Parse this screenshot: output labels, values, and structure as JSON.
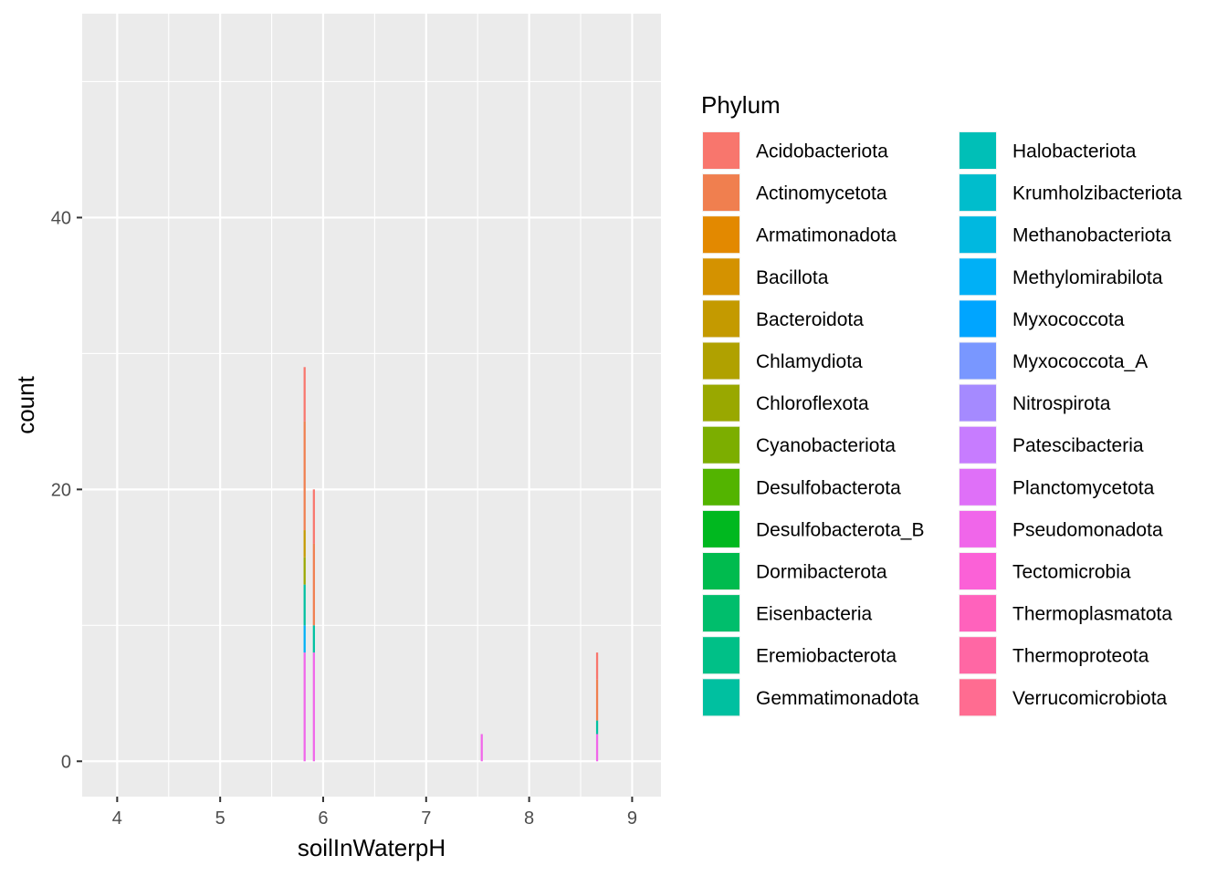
{
  "chart_data": {
    "type": "bar",
    "subtype": "stacked-histogram",
    "xlabel": "soilInWaterpH",
    "ylabel": "count",
    "xlim": [
      3.66,
      9.28
    ],
    "ylim": [
      -2.6,
      55.0
    ],
    "x_ticks": [
      4,
      5,
      6,
      7,
      8,
      9
    ],
    "y_ticks": [
      0,
      20,
      40
    ],
    "grid": true,
    "legend": {
      "title": "Phylum",
      "placement": "right",
      "columns": 2,
      "entries": [
        {
          "name": "Acidobacteriota",
          "color": "#F8766D"
        },
        {
          "name": "Actinomycetota",
          "color": "#F07F4F"
        },
        {
          "name": "Armatimonadota",
          "color": "#E38900"
        },
        {
          "name": "Bacillota",
          "color": "#D49200"
        },
        {
          "name": "Bacteroidota",
          "color": "#C49A00"
        },
        {
          "name": "Chlamydiota",
          "color": "#B0A100"
        },
        {
          "name": "Chloroflexota",
          "color": "#99A800"
        },
        {
          "name": "Cyanobacteriota",
          "color": "#7CAE00"
        },
        {
          "name": "Desulfobacterota",
          "color": "#53B400"
        },
        {
          "name": "Desulfobacterota_B",
          "color": "#00B81F"
        },
        {
          "name": "Dormibacterota",
          "color": "#00BB4E"
        },
        {
          "name": "Eisenbacteria",
          "color": "#00BE6C"
        },
        {
          "name": "Eremiobacterota",
          "color": "#00C087"
        },
        {
          "name": "Gemmatimonadota",
          "color": "#00C0A0"
        },
        {
          "name": "Halobacteriota",
          "color": "#00BFB7"
        },
        {
          "name": "Krumholzibacteriota",
          "color": "#00BDCC"
        },
        {
          "name": "Methanobacteriota",
          "color": "#00B8E0"
        },
        {
          "name": "Methylomirabilota",
          "color": "#00B0F6"
        },
        {
          "name": "Myxococcota",
          "color": "#00A5FF"
        },
        {
          "name": "Myxococcota_A",
          "color": "#7997FF"
        },
        {
          "name": "Nitrospirota",
          "color": "#A58AFF"
        },
        {
          "name": "Patescibacteria",
          "color": "#C77CFF"
        },
        {
          "name": "Planctomycetota",
          "color": "#DF70F8"
        },
        {
          "name": "Pseudomonadota",
          "color": "#F066EA"
        },
        {
          "name": "Tectomicrobia",
          "color": "#FB61D7"
        },
        {
          "name": "Thermoplasmatota",
          "color": "#FF62BC"
        },
        {
          "name": "Thermoproteota",
          "color": "#FF67A4"
        },
        {
          "name": "Verrucomicrobiota",
          "color": "#FF6C91"
        }
      ]
    },
    "bin_width": 0.02,
    "bars": [
      {
        "x": 5.82,
        "segments": [
          {
            "phylum": "Pseudomonadota",
            "count": 8
          },
          {
            "phylum": "Methylomirabilota",
            "count": 2
          },
          {
            "phylum": "Gemmatimonadota",
            "count": 3
          },
          {
            "phylum": "Chloroflexota",
            "count": 2
          },
          {
            "phylum": "Bacteroidota",
            "count": 2
          },
          {
            "phylum": "Actinomycetota",
            "count": 8
          },
          {
            "phylum": "Acidobacteriota",
            "count": 4
          }
        ]
      },
      {
        "x": 5.91,
        "segments": [
          {
            "phylum": "Pseudomonadota",
            "count": 8
          },
          {
            "phylum": "Gemmatimonadota",
            "count": 2
          },
          {
            "phylum": "Actinomycetota",
            "count": 6
          },
          {
            "phylum": "Acidobacteriota",
            "count": 4
          }
        ]
      },
      {
        "x": 7.54,
        "segments": [
          {
            "phylum": "Pseudomonadota",
            "count": 2
          }
        ]
      },
      {
        "x": 8.66,
        "segments": [
          {
            "phylum": "Pseudomonadota",
            "count": 2
          },
          {
            "phylum": "Gemmatimonadota",
            "count": 1
          },
          {
            "phylum": "Actinomycetota",
            "count": 3
          },
          {
            "phylum": "Acidobacteriota",
            "count": 2
          }
        ]
      }
    ]
  }
}
